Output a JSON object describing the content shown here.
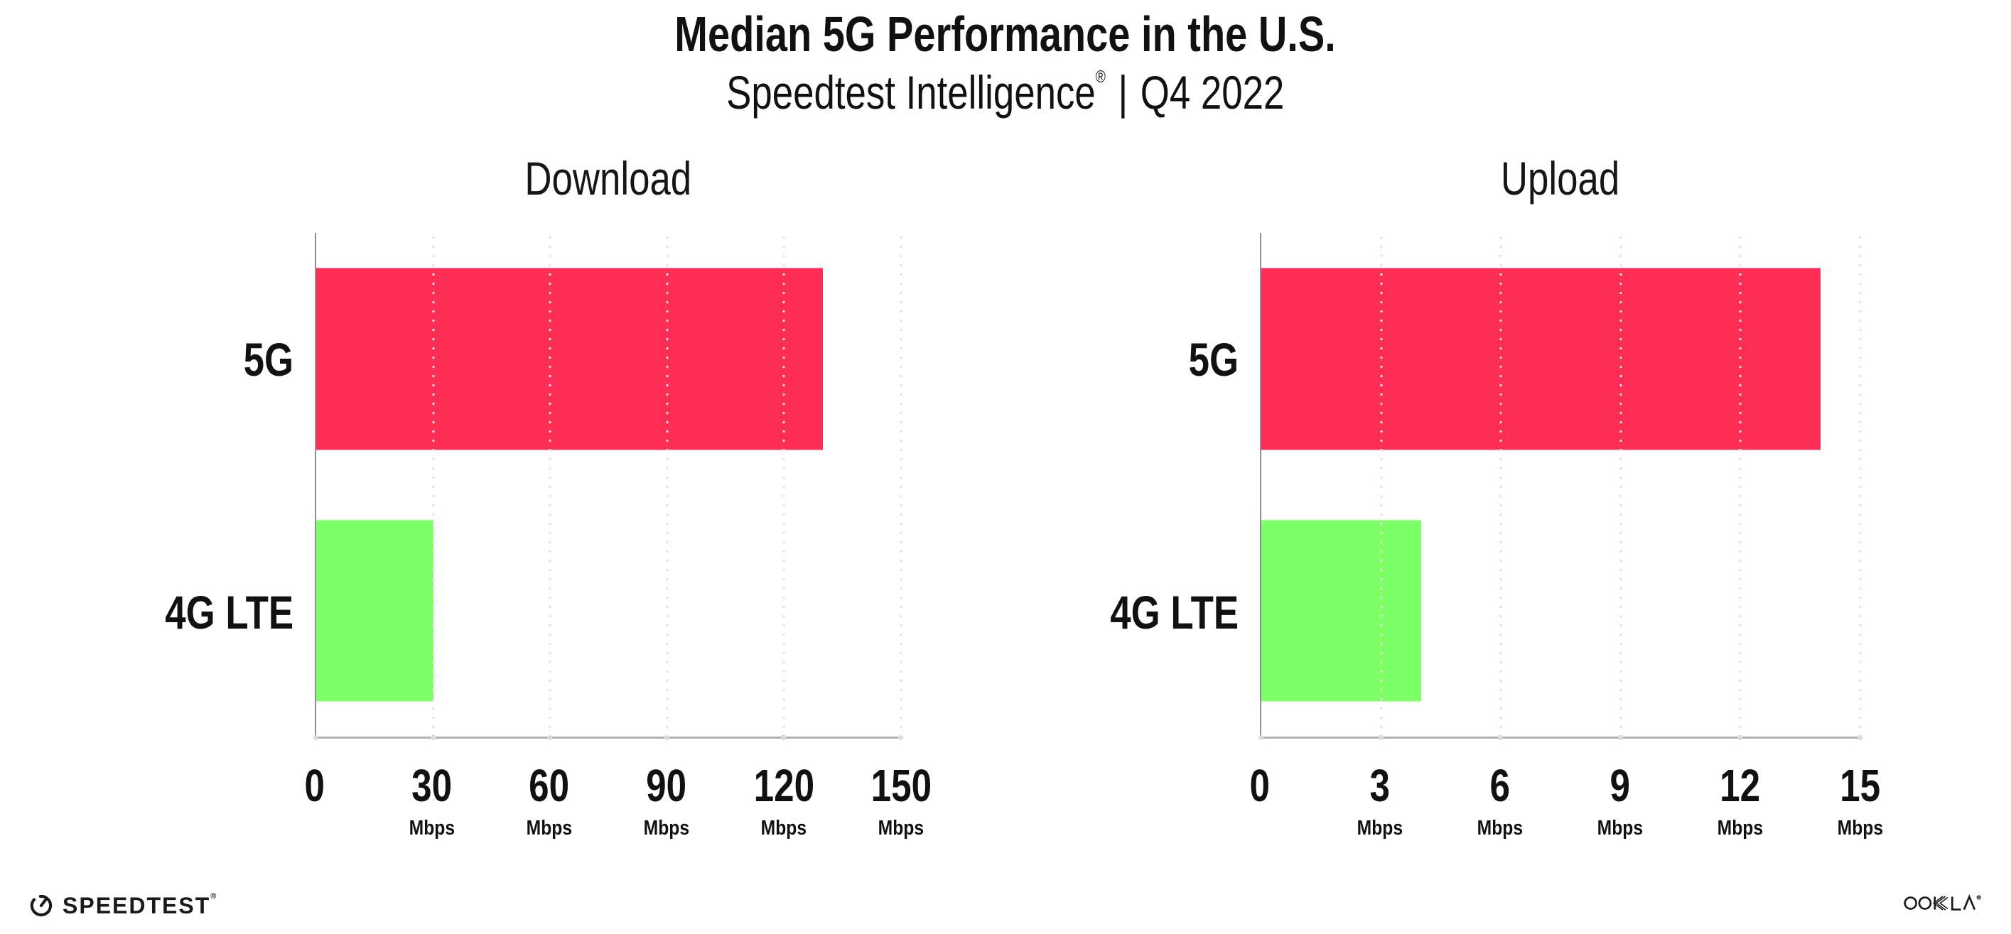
{
  "header": {
    "title": "Median 5G Performance in the U.S.",
    "subtitle": {
      "brand": "Speedtest Intelligence",
      "registered_mark": "®",
      "separator": "|",
      "period": "Q4 2022"
    }
  },
  "chart_data": [
    {
      "type": "bar",
      "orientation": "horizontal",
      "title": "Download",
      "categories": [
        "5G",
        "4G LTE"
      ],
      "values": [
        130,
        30
      ],
      "unit": "Mbps",
      "xlim": [
        0,
        150
      ],
      "xticks": [
        0,
        30,
        60,
        90,
        120,
        150
      ],
      "bar_colors": [
        "#FD2D55",
        "#7DFF66"
      ],
      "grid": "dotted-vertical",
      "legend": "none"
    },
    {
      "type": "bar",
      "orientation": "horizontal",
      "title": "Upload",
      "categories": [
        "5G",
        "4G LTE"
      ],
      "values": [
        14,
        4
      ],
      "unit": "Mbps",
      "xlim": [
        0,
        15
      ],
      "xticks": [
        0,
        3,
        6,
        9,
        12,
        15
      ],
      "bar_colors": [
        "#FD2D55",
        "#7DFF66"
      ],
      "grid": "dotted-vertical",
      "legend": "none"
    }
  ],
  "style": {
    "accent_pink": "#FD2D55",
    "accent_green": "#7DFF66",
    "gridline_color": "#E1E1EB",
    "axis_color": "#AFAFB6",
    "spine_color": "#8E8E96",
    "tick_dot_color": "#D9D9E6",
    "text_color": "#111111",
    "background": "#FFFFFF"
  },
  "footer": {
    "speedtest_wordmark": "SPEEDTEST",
    "speedtest_mark": "®",
    "ookla_wordmark": "OOKLA",
    "ookla_mark": "®"
  }
}
